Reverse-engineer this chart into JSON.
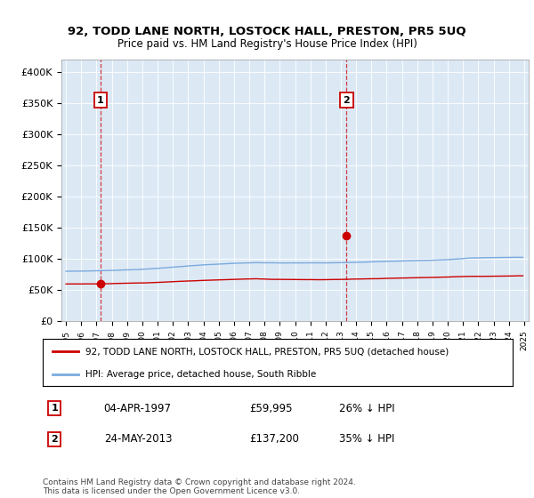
{
  "title": "92, TODD LANE NORTH, LOSTOCK HALL, PRESTON, PR5 5UQ",
  "subtitle": "Price paid vs. HM Land Registry's House Price Index (HPI)",
  "legend_line1": "92, TODD LANE NORTH, LOSTOCK HALL, PRESTON, PR5 5UQ (detached house)",
  "legend_line2": "HPI: Average price, detached house, South Ribble",
  "marker1_date": "04-APR-1997",
  "marker1_price": "£59,995",
  "marker1_hpi": "26% ↓ HPI",
  "marker2_date": "24-MAY-2013",
  "marker2_price": "£137,200",
  "marker2_hpi": "35% ↓ HPI",
  "footnote": "Contains HM Land Registry data © Crown copyright and database right 2024.\nThis data is licensed under the Open Government Licence v3.0.",
  "bg_color": "#dce9f5",
  "red_color": "#cc0000",
  "blue_color": "#7aaadd",
  "marker1_x_year": 1997.25,
  "marker1_y": 59995,
  "marker2_x_year": 2013.38,
  "marker2_y": 137200,
  "ylim": [
    0,
    420000
  ],
  "xlim_start": 1994.7,
  "xlim_end": 2025.3
}
